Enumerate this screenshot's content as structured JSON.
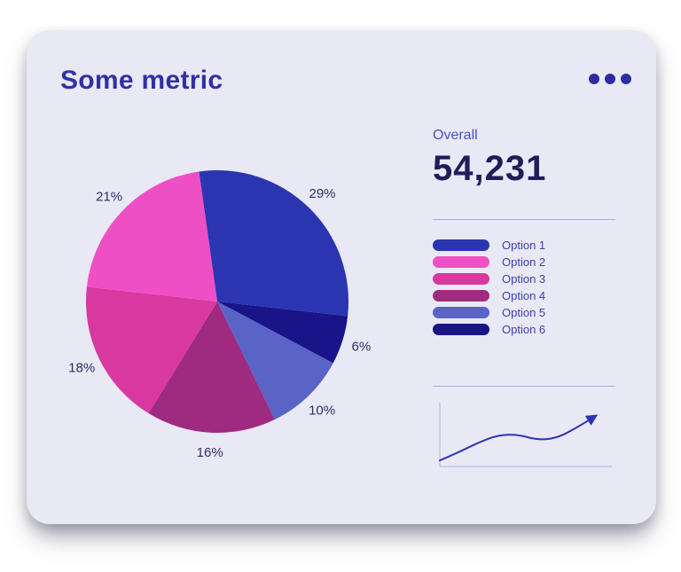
{
  "card": {
    "title": "Some metric",
    "menu_icon": "ellipsis-icon"
  },
  "overall": {
    "label": "Overall",
    "value": "54,231"
  },
  "legend": {
    "items": [
      {
        "label": "Option 1",
        "color": "#2b35b2"
      },
      {
        "label": "Option 2",
        "color": "#ee4fc4"
      },
      {
        "label": "Option 3",
        "color": "#d8389f"
      },
      {
        "label": "Option 4",
        "color": "#9f2b80"
      },
      {
        "label": "Option 5",
        "color": "#5a63c6"
      },
      {
        "label": "Option 6",
        "color": "#191488"
      }
    ]
  },
  "colors": {
    "card_bg": "#e9e9f5",
    "title": "#3130a7",
    "accent": "#2b35b2",
    "big_number": "#211d58",
    "label_text": "#3b3eae",
    "divider": "#a9aeda",
    "pct_label": "#2c2e60",
    "axis": "#b9bedd"
  },
  "chart_data": [
    {
      "type": "pie",
      "title": "Some metric",
      "unit": "%",
      "start_angle_deg": -8,
      "direction": "clockwise",
      "labels_outside": true,
      "legend_position": "right",
      "slices": [
        {
          "label": "Option 1",
          "value": 29,
          "color": "#2b35b2"
        },
        {
          "label": "Option 6",
          "value": 6,
          "color": "#191488"
        },
        {
          "label": "Option 5",
          "value": 10,
          "color": "#5a63c6"
        },
        {
          "label": "Option 4",
          "value": 16,
          "color": "#9f2b80"
        },
        {
          "label": "Option 3",
          "value": 18,
          "color": "#d8389f"
        },
        {
          "label": "Option 2",
          "value": 21,
          "color": "#ee4fc4"
        }
      ]
    },
    {
      "type": "line",
      "name": "trend-sparkline",
      "x": [
        0,
        1,
        2,
        3,
        4,
        5,
        6,
        7,
        8
      ],
      "y": [
        10,
        24,
        40,
        52,
        53,
        44,
        47,
        64,
        84
      ],
      "ylim": [
        0,
        100
      ],
      "color": "#2b35b2",
      "arrow_end": true,
      "axes": [
        "left",
        "bottom"
      ]
    }
  ]
}
